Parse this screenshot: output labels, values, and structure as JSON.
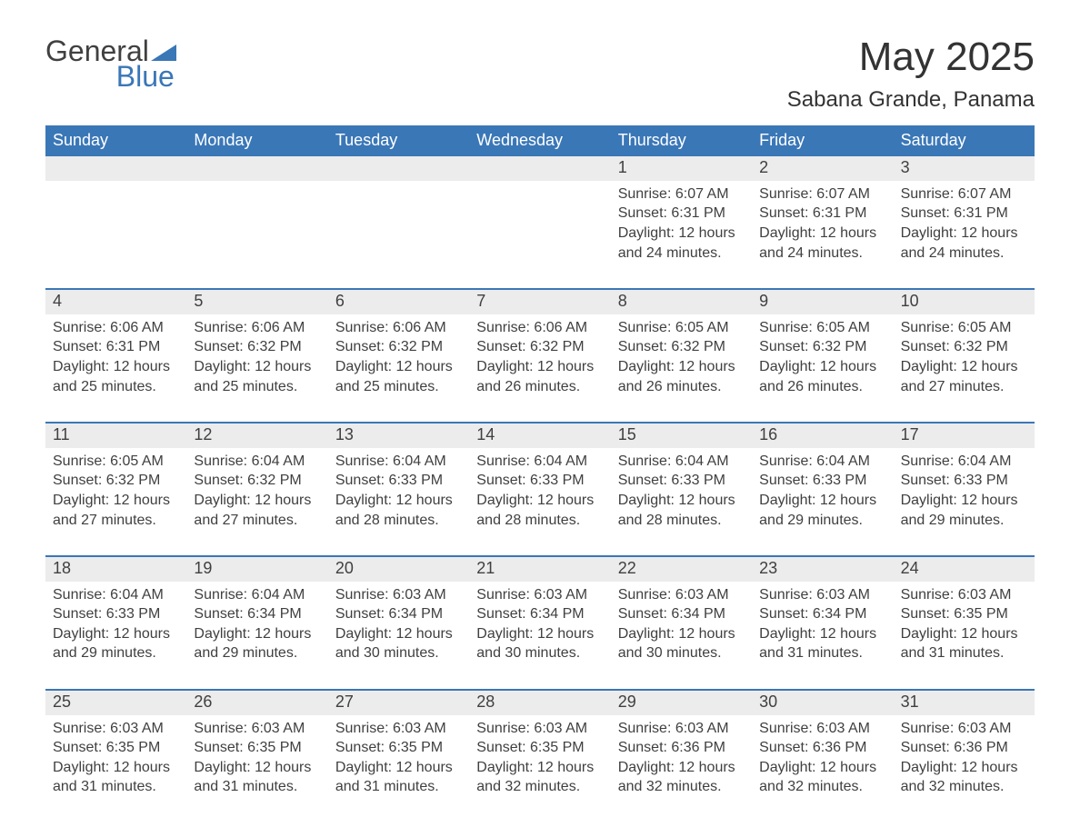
{
  "brand": {
    "name_part1": "General",
    "name_part2": "Blue",
    "color_gray": "#404040",
    "color_blue": "#3a77b7"
  },
  "title": "May 2025",
  "subtitle": "Sabana Grande, Panama",
  "colors": {
    "header_bg": "#3a77b7",
    "header_text": "#ffffff",
    "daynum_bg": "#ececec",
    "text": "#404040",
    "page_bg": "#ffffff",
    "week_divider": "#3a77b7"
  },
  "typography": {
    "title_fontsize": 44,
    "subtitle_fontsize": 24,
    "dow_fontsize": 18,
    "daynum_fontsize": 18,
    "body_fontsize": 16
  },
  "calendar": {
    "type": "table",
    "days_of_week": [
      "Sunday",
      "Monday",
      "Tuesday",
      "Wednesday",
      "Thursday",
      "Friday",
      "Saturday"
    ],
    "weeks": [
      [
        null,
        null,
        null,
        null,
        {
          "n": "1",
          "sunrise": "6:07 AM",
          "sunset": "6:31 PM",
          "daylight": "12 hours and 24 minutes."
        },
        {
          "n": "2",
          "sunrise": "6:07 AM",
          "sunset": "6:31 PM",
          "daylight": "12 hours and 24 minutes."
        },
        {
          "n": "3",
          "sunrise": "6:07 AM",
          "sunset": "6:31 PM",
          "daylight": "12 hours and 24 minutes."
        }
      ],
      [
        {
          "n": "4",
          "sunrise": "6:06 AM",
          "sunset": "6:31 PM",
          "daylight": "12 hours and 25 minutes."
        },
        {
          "n": "5",
          "sunrise": "6:06 AM",
          "sunset": "6:32 PM",
          "daylight": "12 hours and 25 minutes."
        },
        {
          "n": "6",
          "sunrise": "6:06 AM",
          "sunset": "6:32 PM",
          "daylight": "12 hours and 25 minutes."
        },
        {
          "n": "7",
          "sunrise": "6:06 AM",
          "sunset": "6:32 PM",
          "daylight": "12 hours and 26 minutes."
        },
        {
          "n": "8",
          "sunrise": "6:05 AM",
          "sunset": "6:32 PM",
          "daylight": "12 hours and 26 minutes."
        },
        {
          "n": "9",
          "sunrise": "6:05 AM",
          "sunset": "6:32 PM",
          "daylight": "12 hours and 26 minutes."
        },
        {
          "n": "10",
          "sunrise": "6:05 AM",
          "sunset": "6:32 PM",
          "daylight": "12 hours and 27 minutes."
        }
      ],
      [
        {
          "n": "11",
          "sunrise": "6:05 AM",
          "sunset": "6:32 PM",
          "daylight": "12 hours and 27 minutes."
        },
        {
          "n": "12",
          "sunrise": "6:04 AM",
          "sunset": "6:32 PM",
          "daylight": "12 hours and 27 minutes."
        },
        {
          "n": "13",
          "sunrise": "6:04 AM",
          "sunset": "6:33 PM",
          "daylight": "12 hours and 28 minutes."
        },
        {
          "n": "14",
          "sunrise": "6:04 AM",
          "sunset": "6:33 PM",
          "daylight": "12 hours and 28 minutes."
        },
        {
          "n": "15",
          "sunrise": "6:04 AM",
          "sunset": "6:33 PM",
          "daylight": "12 hours and 28 minutes."
        },
        {
          "n": "16",
          "sunrise": "6:04 AM",
          "sunset": "6:33 PM",
          "daylight": "12 hours and 29 minutes."
        },
        {
          "n": "17",
          "sunrise": "6:04 AM",
          "sunset": "6:33 PM",
          "daylight": "12 hours and 29 minutes."
        }
      ],
      [
        {
          "n": "18",
          "sunrise": "6:04 AM",
          "sunset": "6:33 PM",
          "daylight": "12 hours and 29 minutes."
        },
        {
          "n": "19",
          "sunrise": "6:04 AM",
          "sunset": "6:34 PM",
          "daylight": "12 hours and 29 minutes."
        },
        {
          "n": "20",
          "sunrise": "6:03 AM",
          "sunset": "6:34 PM",
          "daylight": "12 hours and 30 minutes."
        },
        {
          "n": "21",
          "sunrise": "6:03 AM",
          "sunset": "6:34 PM",
          "daylight": "12 hours and 30 minutes."
        },
        {
          "n": "22",
          "sunrise": "6:03 AM",
          "sunset": "6:34 PM",
          "daylight": "12 hours and 30 minutes."
        },
        {
          "n": "23",
          "sunrise": "6:03 AM",
          "sunset": "6:34 PM",
          "daylight": "12 hours and 31 minutes."
        },
        {
          "n": "24",
          "sunrise": "6:03 AM",
          "sunset": "6:35 PM",
          "daylight": "12 hours and 31 minutes."
        }
      ],
      [
        {
          "n": "25",
          "sunrise": "6:03 AM",
          "sunset": "6:35 PM",
          "daylight": "12 hours and 31 minutes."
        },
        {
          "n": "26",
          "sunrise": "6:03 AM",
          "sunset": "6:35 PM",
          "daylight": "12 hours and 31 minutes."
        },
        {
          "n": "27",
          "sunrise": "6:03 AM",
          "sunset": "6:35 PM",
          "daylight": "12 hours and 31 minutes."
        },
        {
          "n": "28",
          "sunrise": "6:03 AM",
          "sunset": "6:35 PM",
          "daylight": "12 hours and 32 minutes."
        },
        {
          "n": "29",
          "sunrise": "6:03 AM",
          "sunset": "6:36 PM",
          "daylight": "12 hours and 32 minutes."
        },
        {
          "n": "30",
          "sunrise": "6:03 AM",
          "sunset": "6:36 PM",
          "daylight": "12 hours and 32 minutes."
        },
        {
          "n": "31",
          "sunrise": "6:03 AM",
          "sunset": "6:36 PM",
          "daylight": "12 hours and 32 minutes."
        }
      ]
    ],
    "labels": {
      "sunrise_prefix": "Sunrise: ",
      "sunset_prefix": "Sunset: ",
      "daylight_prefix": "Daylight: "
    }
  }
}
